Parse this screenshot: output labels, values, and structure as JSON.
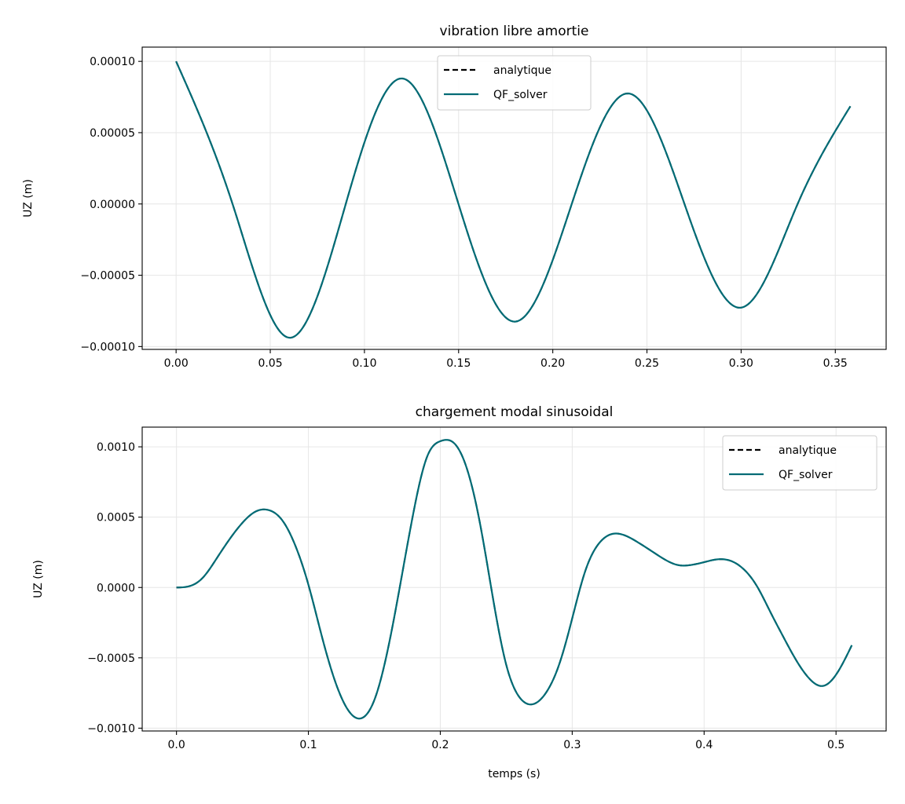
{
  "chart_data": [
    {
      "type": "line",
      "title": "vibration libre amortie",
      "xlabel": "",
      "ylabel": "UZ (m)",
      "xlim": [
        -0.018,
        0.377
      ],
      "ylim": [
        -0.000102,
        0.00011
      ],
      "grid": true,
      "legend_position": "top-center",
      "x_ticks": [
        0.0,
        0.05,
        0.1,
        0.15,
        0.2,
        0.25,
        0.3,
        0.35
      ],
      "x_tick_labels": [
        "0.00",
        "0.05",
        "0.10",
        "0.15",
        "0.20",
        "0.25",
        "0.30",
        "0.35"
      ],
      "y_ticks": [
        0.0001,
        5e-05,
        0.0,
        -5e-05,
        -0.0001
      ],
      "y_tick_labels": [
        "0.00010",
        "0.00005",
        "0.00000",
        "−0.00005",
        "−0.00010"
      ],
      "series": [
        {
          "name": "analytique",
          "style": "dashed",
          "color": "#000000",
          "x": [
            0.0,
            0.03,
            0.06,
            0.09,
            0.12,
            0.15,
            0.18,
            0.21,
            0.24,
            0.27,
            0.3,
            0.33,
            0.358
          ],
          "y": [
            0.0001,
            -1e-07,
            -9.38e-05,
            -4e-07,
            8.8e-05,
            -3e-07,
            -8.25e-05,
            -3e-07,
            7.75e-05,
            -3e-07,
            -7.27e-05,
            0.0,
            6.85e-05
          ]
        },
        {
          "name": "QF_solver",
          "style": "solid",
          "color": "#006b75",
          "x": [
            0.0,
            0.03,
            0.06,
            0.09,
            0.12,
            0.15,
            0.18,
            0.21,
            0.24,
            0.27,
            0.3,
            0.33,
            0.358
          ],
          "y": [
            0.0001,
            -1e-07,
            -9.38e-05,
            -4e-07,
            8.8e-05,
            -3e-07,
            -8.25e-05,
            -3e-07,
            7.75e-05,
            -3e-07,
            -7.27e-05,
            0.0,
            6.85e-05
          ]
        }
      ]
    },
    {
      "type": "line",
      "title": "chargement modal sinusoidal",
      "xlabel": "temps (s)",
      "ylabel": "UZ (m)",
      "xlim": [
        -0.026,
        0.538
      ],
      "ylim": [
        -0.00102,
        0.00114
      ],
      "grid": true,
      "legend_position": "top-right",
      "x_ticks": [
        0.0,
        0.1,
        0.2,
        0.3,
        0.4,
        0.5
      ],
      "x_tick_labels": [
        "0.0",
        "0.1",
        "0.2",
        "0.3",
        "0.4",
        "0.5"
      ],
      "y_ticks": [
        0.001,
        0.0005,
        0.0,
        -0.0005,
        -0.001
      ],
      "y_tick_labels": [
        "0.0010",
        "0.0005",
        "0.0000",
        "−0.0005",
        "−0.0010"
      ],
      "series": [
        {
          "name": "analytique",
          "style": "dashed",
          "color": "#000000",
          "x": [
            0.0,
            0.01,
            0.02,
            0.03,
            0.04,
            0.05,
            0.06,
            0.07,
            0.08,
            0.09,
            0.1,
            0.11,
            0.12,
            0.13,
            0.14,
            0.15,
            0.16,
            0.17,
            0.18,
            0.19,
            0.2,
            0.21,
            0.22,
            0.23,
            0.24,
            0.25,
            0.26,
            0.27,
            0.28,
            0.29,
            0.3,
            0.31,
            0.32,
            0.33,
            0.34,
            0.35,
            0.36,
            0.37,
            0.38,
            0.39,
            0.4,
            0.41,
            0.42,
            0.43,
            0.44,
            0.45,
            0.46,
            0.47,
            0.48,
            0.49,
            0.5,
            0.512
          ],
          "y": [
            0.0,
            1e-05,
            7e-05,
            0.0002,
            0.00034,
            0.00046,
            0.00054,
            0.00055,
            0.00048,
            0.0003,
            2e-05,
            -0.00034,
            -0.00066,
            -0.00087,
            -0.00093,
            -0.0008,
            -0.00045,
            4e-05,
            0.00055,
            0.00093,
            0.00104,
            0.00103,
            0.00085,
            0.00046,
            -8e-05,
            -0.00055,
            -0.00078,
            -0.00083,
            -0.00075,
            -0.00055,
            -0.00022,
            0.00012,
            0.00031,
            0.00038,
            0.00037,
            0.00032,
            0.00026,
            0.0002,
            0.00016,
            0.00016,
            0.00018,
            0.0002,
            0.00019,
            0.00013,
            1e-05,
            -0.00017,
            -0.00035,
            -0.00052,
            -0.00065,
            -0.0007,
            -0.00062,
            -0.00041
          ]
        },
        {
          "name": "QF_solver",
          "style": "solid",
          "color": "#006b75",
          "x": [
            0.0,
            0.01,
            0.02,
            0.03,
            0.04,
            0.05,
            0.06,
            0.07,
            0.08,
            0.09,
            0.1,
            0.11,
            0.12,
            0.13,
            0.14,
            0.15,
            0.16,
            0.17,
            0.18,
            0.19,
            0.2,
            0.21,
            0.22,
            0.23,
            0.24,
            0.25,
            0.26,
            0.27,
            0.28,
            0.29,
            0.3,
            0.31,
            0.32,
            0.33,
            0.34,
            0.35,
            0.36,
            0.37,
            0.38,
            0.39,
            0.4,
            0.41,
            0.42,
            0.43,
            0.44,
            0.45,
            0.46,
            0.47,
            0.48,
            0.49,
            0.5,
            0.512
          ],
          "y": [
            0.0,
            1e-05,
            7e-05,
            0.0002,
            0.00034,
            0.00046,
            0.00054,
            0.00055,
            0.00048,
            0.0003,
            2e-05,
            -0.00034,
            -0.00066,
            -0.00087,
            -0.00093,
            -0.0008,
            -0.00045,
            4e-05,
            0.00055,
            0.00093,
            0.00104,
            0.00103,
            0.00085,
            0.00046,
            -8e-05,
            -0.00055,
            -0.00078,
            -0.00083,
            -0.00075,
            -0.00055,
            -0.00022,
            0.00012,
            0.00031,
            0.00038,
            0.00037,
            0.00032,
            0.00026,
            0.0002,
            0.00016,
            0.00016,
            0.00018,
            0.0002,
            0.00019,
            0.00013,
            1e-05,
            -0.00017,
            -0.00035,
            -0.00052,
            -0.00065,
            -0.0007,
            -0.00062,
            -0.00041
          ]
        }
      ]
    }
  ]
}
